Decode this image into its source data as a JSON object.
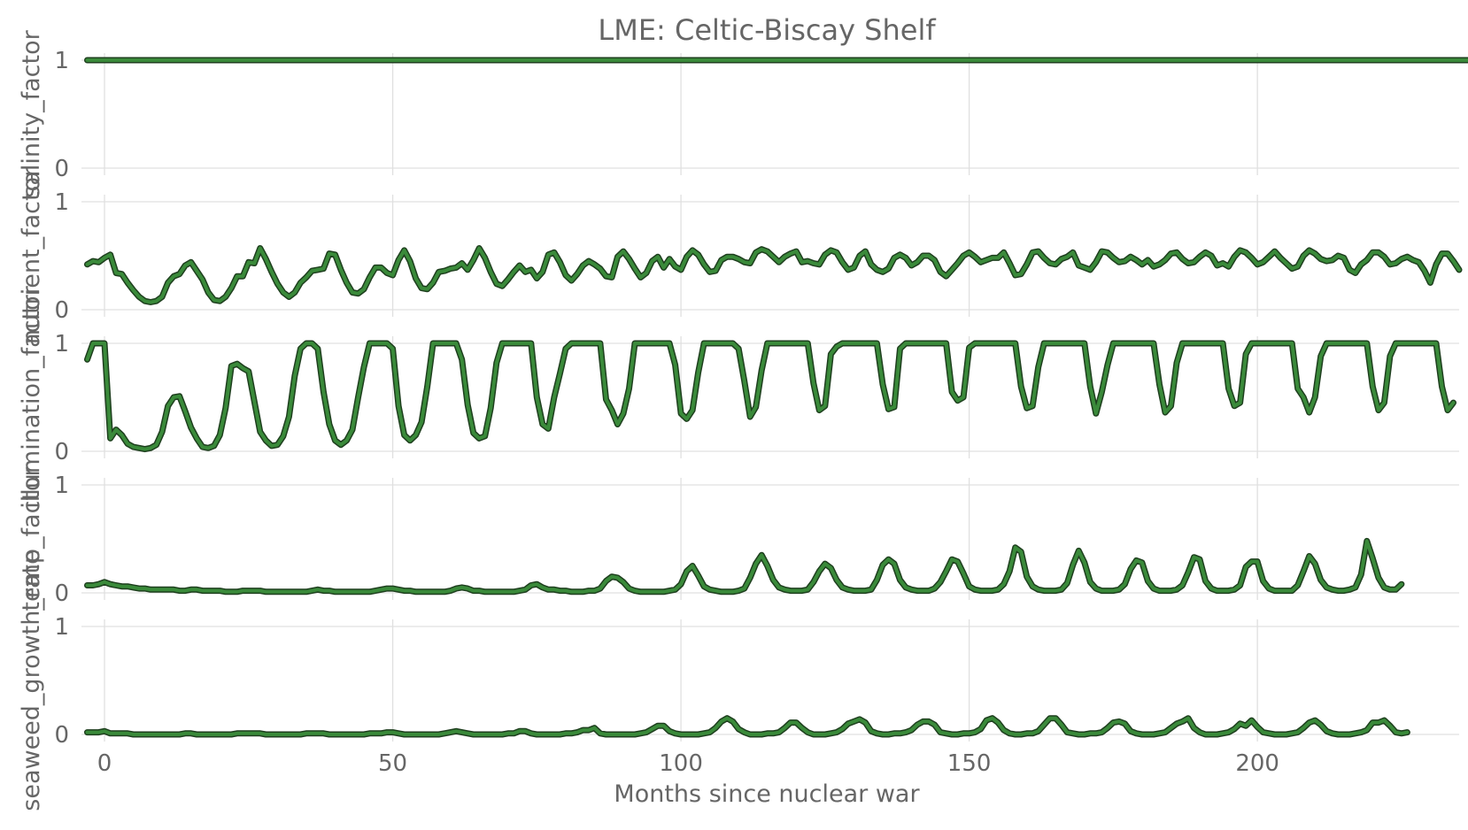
{
  "chart_data": {
    "type": "line",
    "title": "LME: Celtic-Biscay Shelf",
    "xlabel": "Months since nuclear war",
    "xlim": [
      -4,
      235
    ],
    "x_ticks": [
      0,
      50,
      100,
      150,
      200
    ],
    "x_tick_labels": [
      "0",
      "50",
      "100",
      "150",
      "200"
    ],
    "grid": true,
    "line_color": "#3a8a3a",
    "outline_color": "#1e3f1e",
    "panels": [
      {
        "ylabel": "salinity_factor",
        "ylim": [
          0,
          1
        ],
        "y_ticks": [
          0,
          1
        ],
        "y_tick_labels": [
          "0",
          "1"
        ],
        "x_start": -3,
        "values": [
          1,
          1,
          1,
          1,
          1,
          1,
          1,
          1,
          1,
          1,
          1,
          1,
          1,
          1,
          1,
          1,
          1,
          1,
          1,
          1,
          1,
          1,
          1,
          1,
          1,
          1,
          1,
          1,
          1,
          1,
          1,
          1,
          1,
          1,
          1,
          1,
          1,
          1,
          1,
          1,
          1,
          1,
          1,
          1,
          1,
          1,
          1,
          1,
          1,
          1,
          1,
          1,
          1,
          1,
          1,
          1,
          1,
          1,
          1,
          1,
          1,
          1,
          1,
          1,
          1,
          1,
          1,
          1,
          1,
          1,
          1,
          1,
          1,
          1,
          1,
          1,
          1,
          1,
          1,
          1,
          1,
          1,
          1,
          1,
          1,
          1,
          1,
          1,
          1,
          1,
          1,
          1,
          1,
          1,
          1,
          1,
          1,
          1,
          1,
          1,
          1,
          1,
          1,
          1,
          1,
          1,
          1,
          1,
          1,
          1,
          1,
          1,
          1,
          1,
          1,
          1,
          1,
          1,
          1,
          1,
          1,
          1,
          1,
          1,
          1,
          1,
          1,
          1,
          1,
          1,
          1,
          1,
          1,
          1,
          1,
          1,
          1,
          1,
          1,
          1,
          1,
          1,
          1,
          1,
          1,
          1,
          1,
          1,
          1,
          1,
          1,
          1,
          1,
          1,
          1,
          1,
          1,
          1,
          1,
          1,
          1,
          1,
          1,
          1,
          1,
          1,
          1,
          1,
          1,
          1,
          1,
          1,
          1,
          1,
          1,
          1,
          1,
          1,
          1,
          1,
          1,
          1,
          1,
          1,
          1,
          1,
          1,
          1,
          1,
          1,
          1,
          1,
          1,
          1,
          1,
          1,
          1,
          1,
          1,
          1,
          1,
          1,
          1,
          1,
          1,
          1,
          1,
          1,
          1,
          1,
          1,
          1,
          1,
          1,
          1,
          1,
          1,
          1,
          1,
          1,
          1,
          1,
          1,
          1,
          1,
          1,
          1,
          1,
          1,
          1,
          1,
          1,
          1,
          1,
          1,
          1,
          1,
          1,
          1,
          1,
          1
        ]
      },
      {
        "ylabel": "nutrient_factor",
        "ylim": [
          0,
          1
        ],
        "y_ticks": [
          0,
          1
        ],
        "y_tick_labels": [
          "0",
          "1"
        ],
        "x_start": -3,
        "values": [
          0.42,
          0.45,
          0.44,
          0.48,
          0.51,
          0.34,
          0.33,
          0.25,
          0.18,
          0.12,
          0.08,
          0.07,
          0.08,
          0.12,
          0.25,
          0.31,
          0.33,
          0.41,
          0.44,
          0.36,
          0.28,
          0.16,
          0.09,
          0.08,
          0.12,
          0.2,
          0.31,
          0.31,
          0.44,
          0.43,
          0.57,
          0.47,
          0.35,
          0.24,
          0.16,
          0.12,
          0.16,
          0.25,
          0.3,
          0.36,
          0.37,
          0.38,
          0.52,
          0.51,
          0.37,
          0.25,
          0.16,
          0.15,
          0.19,
          0.3,
          0.39,
          0.39,
          0.34,
          0.32,
          0.46,
          0.55,
          0.45,
          0.29,
          0.2,
          0.19,
          0.25,
          0.35,
          0.36,
          0.38,
          0.39,
          0.43,
          0.37,
          0.46,
          0.57,
          0.48,
          0.35,
          0.24,
          0.22,
          0.28,
          0.35,
          0.41,
          0.35,
          0.37,
          0.29,
          0.35,
          0.51,
          0.53,
          0.44,
          0.32,
          0.27,
          0.33,
          0.41,
          0.45,
          0.42,
          0.38,
          0.31,
          0.3,
          0.49,
          0.54,
          0.47,
          0.38,
          0.3,
          0.34,
          0.45,
          0.49,
          0.39,
          0.47,
          0.4,
          0.37,
          0.49,
          0.55,
          0.51,
          0.42,
          0.35,
          0.36,
          0.46,
          0.49,
          0.49,
          0.47,
          0.44,
          0.43,
          0.53,
          0.56,
          0.54,
          0.49,
          0.44,
          0.49,
          0.52,
          0.54,
          0.44,
          0.45,
          0.43,
          0.42,
          0.51,
          0.55,
          0.53,
          0.44,
          0.37,
          0.39,
          0.5,
          0.54,
          0.42,
          0.37,
          0.35,
          0.38,
          0.48,
          0.51,
          0.48,
          0.41,
          0.44,
          0.5,
          0.5,
          0.46,
          0.35,
          0.31,
          0.37,
          0.43,
          0.5,
          0.53,
          0.49,
          0.44,
          0.46,
          0.48,
          0.48,
          0.53,
          0.43,
          0.32,
          0.33,
          0.42,
          0.53,
          0.54,
          0.48,
          0.43,
          0.42,
          0.47,
          0.49,
          0.53,
          0.41,
          0.39,
          0.37,
          0.44,
          0.54,
          0.53,
          0.48,
          0.44,
          0.45,
          0.49,
          0.46,
          0.42,
          0.46,
          0.4,
          0.42,
          0.46,
          0.52,
          0.53,
          0.47,
          0.43,
          0.44,
          0.49,
          0.53,
          0.5,
          0.41,
          0.43,
          0.4,
          0.49,
          0.55,
          0.53,
          0.48,
          0.42,
          0.44,
          0.49,
          0.54,
          0.48,
          0.43,
          0.38,
          0.4,
          0.5,
          0.55,
          0.52,
          0.47,
          0.45,
          0.46,
          0.5,
          0.48,
          0.37,
          0.34,
          0.42,
          0.46,
          0.53,
          0.53,
          0.49,
          0.42,
          0.43,
          0.47,
          0.49,
          0.46,
          0.44,
          0.36,
          0.25,
          0.42,
          0.52,
          0.52,
          0.45,
          0.37
        ]
      },
      {
        "ylabel": "illumination_factor",
        "ylim": [
          0,
          1
        ],
        "y_ticks": [
          0,
          1
        ],
        "y_tick_labels": [
          "0",
          "1"
        ],
        "x_start": -3,
        "values": [
          0.85,
          1,
          1,
          1,
          0.12,
          0.2,
          0.15,
          0.07,
          0.04,
          0.03,
          0.02,
          0.03,
          0.06,
          0.18,
          0.42,
          0.5,
          0.51,
          0.37,
          0.22,
          0.12,
          0.04,
          0.03,
          0.05,
          0.15,
          0.4,
          0.79,
          0.81,
          0.77,
          0.74,
          0.46,
          0.18,
          0.1,
          0.05,
          0.06,
          0.14,
          0.32,
          0.7,
          0.95,
          1,
          1,
          0.95,
          0.55,
          0.25,
          0.1,
          0.06,
          0.1,
          0.2,
          0.5,
          0.78,
          1,
          1,
          1,
          1,
          0.95,
          0.42,
          0.15,
          0.1,
          0.15,
          0.27,
          0.6,
          1,
          1,
          1,
          1,
          1,
          0.85,
          0.43,
          0.17,
          0.12,
          0.14,
          0.4,
          0.82,
          1,
          1,
          1,
          1,
          1,
          1,
          0.5,
          0.25,
          0.21,
          0.5,
          0.72,
          0.95,
          1,
          1,
          1,
          1,
          1,
          1,
          0.48,
          0.38,
          0.25,
          0.35,
          0.58,
          1,
          1,
          1,
          1,
          1,
          1,
          1,
          0.8,
          0.35,
          0.3,
          0.38,
          0.73,
          1,
          1,
          1,
          1,
          1,
          1,
          0.95,
          0.65,
          0.32,
          0.41,
          0.75,
          1,
          1,
          1,
          1,
          1,
          1,
          1,
          1,
          0.63,
          0.38,
          0.42,
          0.9,
          0.97,
          1,
          1,
          1,
          1,
          1,
          1,
          1,
          0.62,
          0.39,
          0.41,
          0.95,
          1,
          1,
          1,
          1,
          1,
          1,
          1,
          1,
          0.55,
          0.47,
          0.5,
          0.96,
          1,
          1,
          1,
          1,
          1,
          1,
          1,
          1,
          0.6,
          0.4,
          0.42,
          0.78,
          1,
          1,
          1,
          1,
          1,
          1,
          1,
          1,
          0.6,
          0.35,
          0.55,
          0.8,
          1,
          1,
          1,
          1,
          1,
          1,
          1,
          1,
          0.62,
          0.36,
          0.42,
          0.82,
          1,
          1,
          1,
          1,
          1,
          1,
          1,
          1,
          0.58,
          0.42,
          0.45,
          0.9,
          1,
          1,
          1,
          1,
          1,
          1,
          1,
          1,
          0.58,
          0.5,
          0.36,
          0.5,
          0.88,
          1,
          1,
          1,
          1,
          1,
          1,
          1,
          1,
          0.6,
          0.38,
          0.45,
          0.88,
          1,
          1,
          1,
          1,
          1,
          1,
          1,
          1,
          0.6,
          0.38,
          0.45
        ]
      },
      {
        "ylabel": "temp_factor",
        "ylim": [
          0,
          1
        ],
        "y_ticks": [
          0,
          1
        ],
        "y_tick_labels": [
          "0",
          "1"
        ],
        "x_start": -3,
        "values": [
          0.07,
          0.07,
          0.08,
          0.1,
          0.08,
          0.07,
          0.06,
          0.06,
          0.05,
          0.04,
          0.04,
          0.03,
          0.03,
          0.03,
          0.03,
          0.03,
          0.02,
          0.02,
          0.03,
          0.03,
          0.02,
          0.02,
          0.02,
          0.02,
          0.01,
          0.01,
          0.01,
          0.02,
          0.02,
          0.02,
          0.02,
          0.01,
          0.01,
          0.01,
          0.01,
          0.01,
          0.01,
          0.01,
          0.01,
          0.02,
          0.03,
          0.02,
          0.02,
          0.01,
          0.01,
          0.01,
          0.01,
          0.01,
          0.01,
          0.01,
          0.02,
          0.03,
          0.04,
          0.04,
          0.03,
          0.02,
          0.02,
          0.01,
          0.01,
          0.01,
          0.01,
          0.01,
          0.01,
          0.02,
          0.04,
          0.05,
          0.04,
          0.02,
          0.02,
          0.01,
          0.01,
          0.01,
          0.01,
          0.01,
          0.01,
          0.02,
          0.03,
          0.07,
          0.08,
          0.05,
          0.03,
          0.03,
          0.02,
          0.02,
          0.01,
          0.01,
          0.01,
          0.02,
          0.02,
          0.04,
          0.11,
          0.15,
          0.14,
          0.1,
          0.04,
          0.02,
          0.01,
          0.01,
          0.01,
          0.01,
          0.01,
          0.02,
          0.03,
          0.08,
          0.2,
          0.25,
          0.16,
          0.06,
          0.03,
          0.02,
          0.01,
          0.01,
          0.01,
          0.02,
          0.04,
          0.14,
          0.27,
          0.35,
          0.25,
          0.12,
          0.05,
          0.03,
          0.02,
          0.02,
          0.02,
          0.03,
          0.1,
          0.2,
          0.27,
          0.23,
          0.12,
          0.05,
          0.03,
          0.02,
          0.02,
          0.02,
          0.03,
          0.12,
          0.26,
          0.31,
          0.27,
          0.12,
          0.05,
          0.03,
          0.02,
          0.02,
          0.02,
          0.04,
          0.1,
          0.2,
          0.31,
          0.29,
          0.18,
          0.06,
          0.03,
          0.02,
          0.02,
          0.02,
          0.03,
          0.08,
          0.2,
          0.42,
          0.38,
          0.15,
          0.06,
          0.03,
          0.02,
          0.02,
          0.02,
          0.03,
          0.09,
          0.26,
          0.39,
          0.28,
          0.1,
          0.04,
          0.02,
          0.02,
          0.02,
          0.03,
          0.08,
          0.22,
          0.3,
          0.28,
          0.11,
          0.04,
          0.02,
          0.02,
          0.02,
          0.03,
          0.07,
          0.19,
          0.33,
          0.31,
          0.11,
          0.04,
          0.02,
          0.02,
          0.02,
          0.03,
          0.07,
          0.24,
          0.29,
          0.29,
          0.11,
          0.04,
          0.02,
          0.02,
          0.02,
          0.02,
          0.07,
          0.2,
          0.34,
          0.27,
          0.12,
          0.05,
          0.03,
          0.02,
          0.02,
          0.03,
          0.05,
          0.17,
          0.48,
          0.32,
          0.14,
          0.05,
          0.03,
          0.03,
          0.08
        ]
      },
      {
        "ylabel": "seaweed_growth_rate",
        "ylim": [
          0,
          1
        ],
        "y_ticks": [
          0,
          1
        ],
        "y_tick_labels": [
          "0",
          "1"
        ],
        "x_start": -3,
        "values": [
          0.02,
          0.02,
          0.02,
          0.03,
          0.01,
          0.01,
          0.01,
          0.01,
          0,
          0,
          0,
          0,
          0,
          0,
          0,
          0,
          0,
          0.01,
          0.01,
          0,
          0,
          0,
          0,
          0,
          0,
          0,
          0.01,
          0.01,
          0.01,
          0.01,
          0.01,
          0,
          0,
          0,
          0,
          0,
          0,
          0,
          0.01,
          0.01,
          0.01,
          0.01,
          0,
          0,
          0,
          0,
          0,
          0,
          0,
          0.01,
          0.01,
          0.01,
          0.02,
          0.02,
          0.01,
          0,
          0,
          0,
          0,
          0,
          0,
          0,
          0.01,
          0.02,
          0.03,
          0.02,
          0.01,
          0,
          0,
          0,
          0,
          0,
          0,
          0.01,
          0.01,
          0.03,
          0.03,
          0.01,
          0,
          0,
          0,
          0,
          0,
          0.01,
          0.01,
          0.02,
          0.04,
          0.04,
          0.06,
          0.01,
          0,
          0,
          0,
          0,
          0,
          0,
          0.01,
          0.02,
          0.05,
          0.08,
          0.08,
          0.03,
          0.01,
          0,
          0,
          0,
          0,
          0.01,
          0.02,
          0.06,
          0.12,
          0.15,
          0.12,
          0.05,
          0.02,
          0,
          0,
          0,
          0.01,
          0.01,
          0.02,
          0.06,
          0.11,
          0.11,
          0.06,
          0.02,
          0,
          0,
          0,
          0.01,
          0.02,
          0.05,
          0.1,
          0.12,
          0.14,
          0.11,
          0.03,
          0.01,
          0,
          0,
          0.01,
          0.01,
          0.02,
          0.04,
          0.09,
          0.12,
          0.12,
          0.09,
          0.02,
          0.01,
          0,
          0,
          0.01,
          0.01,
          0.02,
          0.05,
          0.13,
          0.15,
          0.11,
          0.04,
          0.01,
          0,
          0,
          0.01,
          0.01,
          0.03,
          0.09,
          0.15,
          0.15,
          0.09,
          0.02,
          0.01,
          0,
          0,
          0.01,
          0.01,
          0.02,
          0.06,
          0.11,
          0.12,
          0.1,
          0.03,
          0.01,
          0,
          0,
          0,
          0.01,
          0.02,
          0.06,
          0.1,
          0.12,
          0.15,
          0.06,
          0.02,
          0,
          0,
          0,
          0.01,
          0.02,
          0.05,
          0.1,
          0.08,
          0.13,
          0.07,
          0.02,
          0.01,
          0,
          0,
          0,
          0.01,
          0.02,
          0.06,
          0.11,
          0.13,
          0.09,
          0.03,
          0.01,
          0,
          0,
          0,
          0.01,
          0.02,
          0.04,
          0.11,
          0.11,
          0.13,
          0.08,
          0.02,
          0.01,
          0.02
        ]
      }
    ]
  }
}
